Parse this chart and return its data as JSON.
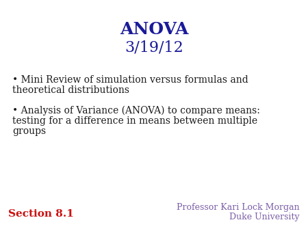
{
  "background_color": "#ffffff",
  "title_line1": "ANOVA",
  "title_line2": "3/19/12",
  "title_color": "#1a1a99",
  "title1_fontsize": 18,
  "title2_fontsize": 16,
  "bullet1_line1": "• Mini Review of simulation versus formulas and",
  "bullet1_line2": "theoretical distributions",
  "bullet2_line1": "• Analysis of Variance (ANOVA) to compare means:",
  "bullet2_line2": "testing for a difference in means between multiple",
  "bullet2_line3": "groups",
  "bullet_color": "#1a1a1a",
  "bullet_fontsize": 10,
  "section_text": "Section 8.1",
  "section_color": "#cc1111",
  "section_fontsize": 11,
  "professor_line1": "Professor Kari Lock Morgan",
  "professor_line2": "Duke University",
  "professor_color": "#7b5ea7",
  "professor_fontsize": 9
}
